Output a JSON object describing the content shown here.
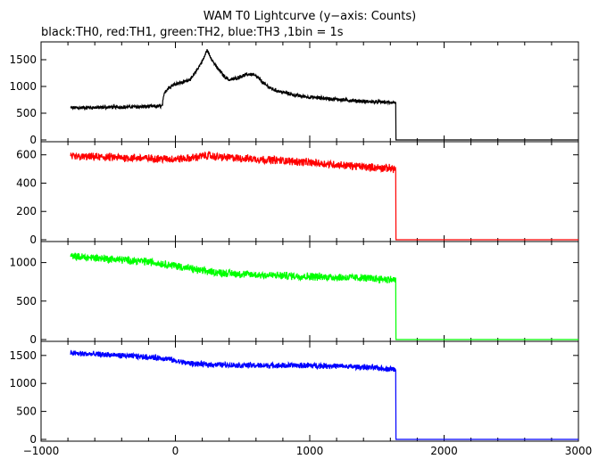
{
  "chart_data": {
    "type": "line",
    "title": "WAM T0 Lightcurve (y−axis: Counts)",
    "subtitle": "black:TH0, red:TH1, green:TH2, blue:TH3 ,1bin = 1s",
    "x_range": [
      -1000,
      3000
    ],
    "x_ticks": [
      -1000,
      0,
      1000,
      2000,
      3000
    ],
    "x_tick_labels": [
      "−1000",
      "0",
      "1000",
      "2000",
      "3000"
    ],
    "grid": false,
    "panels": [
      {
        "name": "TH0",
        "color": "#000000",
        "ylim": [
          0,
          1800
        ],
        "y_ticks": [
          0,
          500,
          1000,
          1500
        ],
        "y_tick_labels": [
          "0",
          "500",
          "1000",
          "1500"
        ],
        "x": [
          -780,
          -500,
          -100,
          -80,
          -40,
          0,
          60,
          120,
          170,
          210,
          235,
          260,
          300,
          360,
          400,
          450,
          500,
          550,
          580,
          620,
          660,
          720,
          800,
          900,
          1000,
          1100,
          1200,
          1300,
          1400,
          1500,
          1600,
          1640,
          1641,
          1700,
          3000
        ],
        "y": [
          600,
          610,
          630,
          900,
          1000,
          1050,
          1080,
          1150,
          1350,
          1520,
          1680,
          1560,
          1380,
          1200,
          1120,
          1150,
          1200,
          1230,
          1220,
          1150,
          1050,
          950,
          890,
          830,
          800,
          780,
          760,
          740,
          720,
          710,
          700,
          700,
          0,
          0,
          0
        ]
      },
      {
        "name": "TH1",
        "color": "#ff0000",
        "ylim": [
          0,
          680
        ],
        "y_ticks": [
          0,
          200,
          400,
          600
        ],
        "y_tick_labels": [
          "0",
          "200",
          "400",
          "600"
        ],
        "x": [
          -780,
          -600,
          -400,
          -200,
          0,
          100,
          200,
          250,
          300,
          400,
          600,
          800,
          1000,
          1200,
          1400,
          1600,
          1640,
          1641,
          1700,
          3000
        ],
        "y": [
          585,
          585,
          580,
          575,
          570,
          575,
          590,
          595,
          585,
          580,
          570,
          560,
          545,
          530,
          515,
          505,
          500,
          0,
          0,
          0
        ],
        "noise": 25
      },
      {
        "name": "TH2",
        "color": "#00ff00",
        "ylim": [
          0,
          1250
        ],
        "y_ticks": [
          0,
          500,
          1000
        ],
        "y_tick_labels": [
          "0",
          "500",
          "1000"
        ],
        "x": [
          -780,
          -500,
          -200,
          0,
          200,
          400,
          600,
          800,
          1000,
          1200,
          1400,
          1600,
          1640,
          1641,
          1700,
          3000
        ],
        "y": [
          1080,
          1050,
          1010,
          960,
          890,
          860,
          840,
          830,
          820,
          810,
          800,
          780,
          770,
          0,
          0,
          0
        ],
        "noise": 45
      },
      {
        "name": "TH3",
        "color": "#0000ff",
        "ylim": [
          0,
          1720
        ],
        "y_ticks": [
          0,
          500,
          1000,
          1500
        ],
        "y_tick_labels": [
          "0",
          "500",
          "1000",
          "1500"
        ],
        "x": [
          -780,
          -500,
          -200,
          -50,
          0,
          100,
          200,
          400,
          600,
          800,
          1000,
          1200,
          1400,
          1600,
          1640,
          1641,
          1700,
          3000
        ],
        "y": [
          1540,
          1510,
          1470,
          1440,
          1400,
          1360,
          1340,
          1330,
          1320,
          1320,
          1320,
          1310,
          1290,
          1260,
          1250,
          0,
          0,
          0
        ],
        "noise": 45
      }
    ]
  }
}
